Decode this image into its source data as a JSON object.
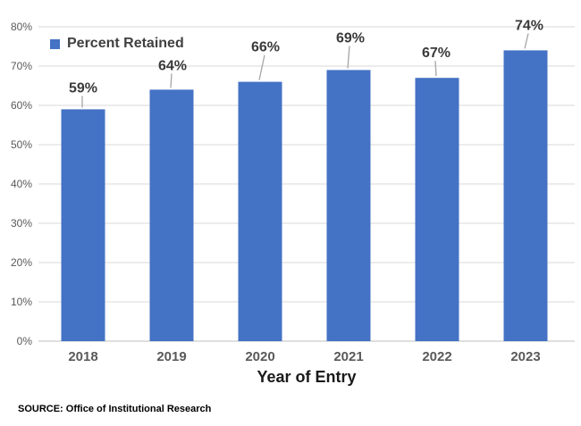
{
  "colors": {
    "bar": "#4472C4",
    "gridline": "#D9D9D9",
    "axis_line": "#BFBFBF",
    "tick_label": "#595959",
    "category_label": "#595959",
    "data_label": "#3A3A3A",
    "leader_line": "#A6A6A6",
    "legend_text": "#404040",
    "axis_title": "#1A1A1A",
    "source_text": "#000000",
    "background": "#FFFFFF"
  },
  "legend": {
    "label": "Percent Retained"
  },
  "chart_data": {
    "type": "bar",
    "title": "",
    "categories": [
      "2018",
      "2019",
      "2020",
      "2021",
      "2022",
      "2023"
    ],
    "series": [
      {
        "name": "Percent Retained",
        "values": [
          59,
          64,
          66,
          69,
          67,
          74
        ]
      }
    ],
    "data_labels": [
      "59%",
      "64%",
      "66%",
      "69%",
      "67%",
      "74%"
    ],
    "xlabel": "Year of Entry",
    "ylabel": "",
    "ylim": [
      0,
      80
    ],
    "ytick_step": 10,
    "ytick_labels": [
      "0%",
      "10%",
      "20%",
      "30%",
      "40%",
      "50%",
      "60%",
      "70%",
      "80%"
    ],
    "grid": true,
    "legend_position": "top-left"
  },
  "footer": {
    "source": "SOURCE: Office of Institutional Research"
  }
}
